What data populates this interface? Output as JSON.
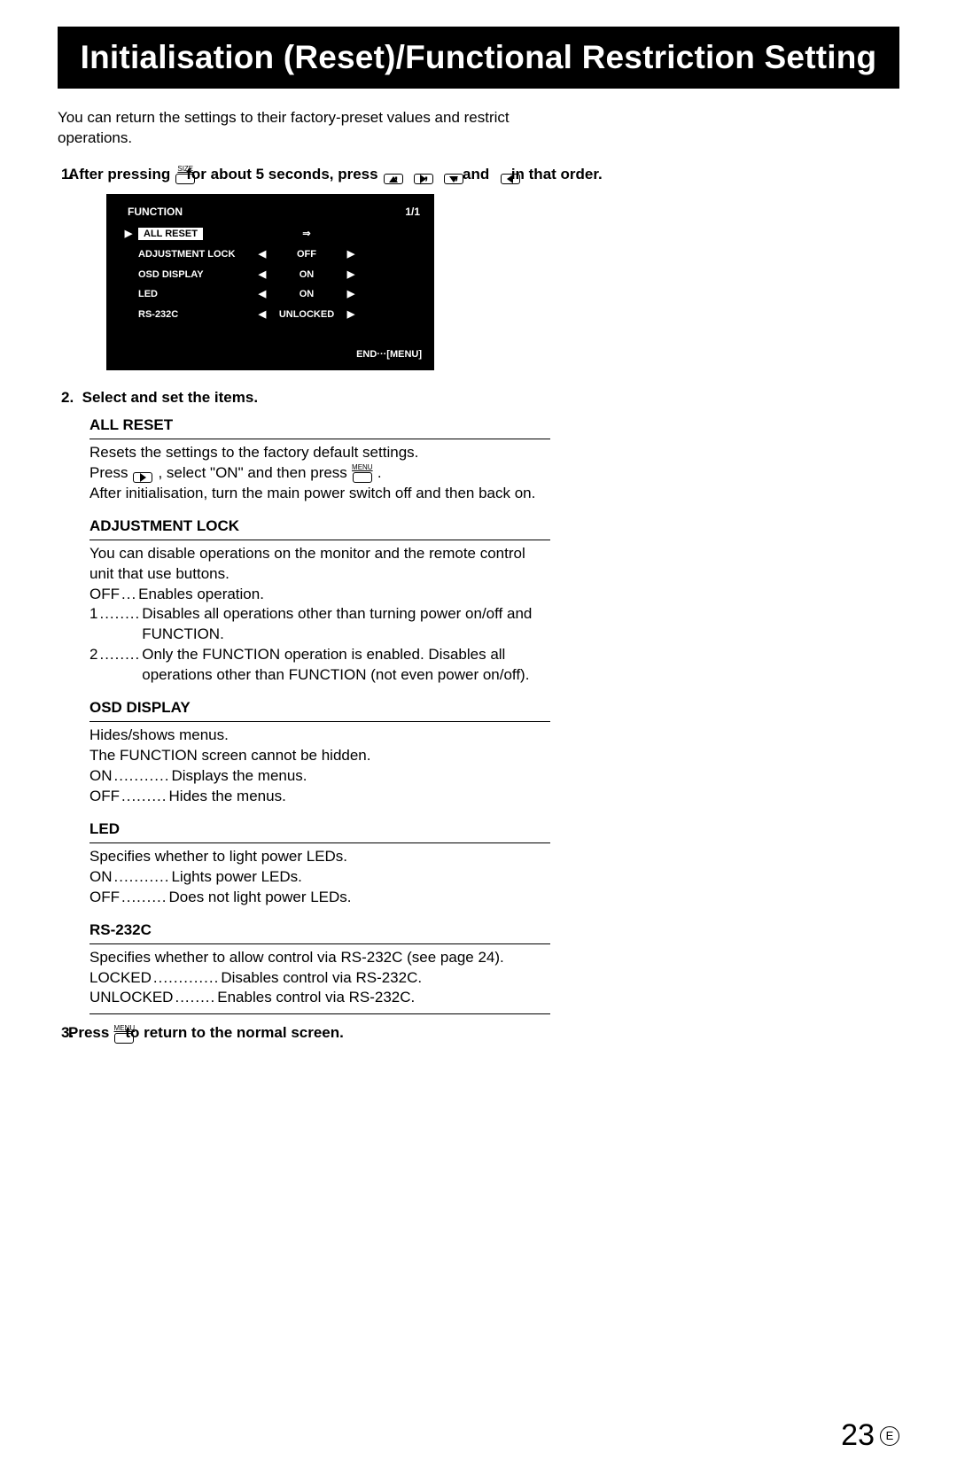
{
  "title": "Initialisation (Reset)/Functional Restriction Setting",
  "intro": "You can return the settings to their factory-preset values and restrict operations.",
  "step1": {
    "num": "1.",
    "a": "After pressing",
    "btn1_label": "SIZE",
    "b": "for about 5 seconds, press",
    "comma": ",",
    "and": ", and",
    "tail": "in that order."
  },
  "osd": {
    "header_left": "FUNCTION",
    "header_right": "1/1",
    "rows": [
      {
        "cursor": "▶",
        "selected": true,
        "name": "ALL RESET",
        "left": "",
        "val": "⇒",
        "right": ""
      },
      {
        "cursor": "",
        "selected": false,
        "name": "ADJUSTMENT LOCK",
        "left": "◀",
        "val": "OFF",
        "right": "▶"
      },
      {
        "cursor": "",
        "selected": false,
        "name": "OSD DISPLAY",
        "left": "◀",
        "val": "ON",
        "right": "▶"
      },
      {
        "cursor": "",
        "selected": false,
        "name": "LED",
        "left": "◀",
        "val": "ON",
        "right": "▶"
      },
      {
        "cursor": "",
        "selected": false,
        "name": "RS-232C",
        "left": "◀",
        "val": "UNLOCKED",
        "right": "▶"
      }
    ],
    "end": "END···[MENU]"
  },
  "step2": {
    "num": "2.",
    "text": "Select and set the items."
  },
  "sections": {
    "all_reset": {
      "title": "ALL RESET",
      "l1": "Resets the settings to the factory default settings.",
      "l2a": "Press",
      "l2b": ", select \"ON\" and then press",
      "l2c": ".",
      "menu_label": "MENU",
      "l3": "After initialisation, turn the main power switch off and then back on."
    },
    "adj_lock": {
      "title": "ADJUSTMENT LOCK",
      "l1": "You can disable operations on the monitor and the remote control unit that use buttons.",
      "off_k": "OFF",
      "off_d": "...",
      "off_v": "Enables operation.",
      "one_k": "1",
      "one_d": "........",
      "one_v": "Disables all operations other than turning power on/off and FUNCTION.",
      "two_k": "2",
      "two_d": "........",
      "two_v": "Only the FUNCTION operation is enabled. Disables all operations other than FUNCTION (not even power on/off)."
    },
    "osd_disp": {
      "title": "OSD DISPLAY",
      "l1": "Hides/shows menus.",
      "l2": "The FUNCTION screen cannot be hidden.",
      "on_k": "ON",
      "on_d": "...........",
      "on_v": "Displays the menus.",
      "off_k": "OFF",
      "off_d": ".........",
      "off_v": "Hides the menus."
    },
    "led": {
      "title": "LED",
      "l1": "Specifies whether to light power LEDs.",
      "on_k": "ON",
      "on_d": "...........",
      "on_v": "Lights power LEDs.",
      "off_k": "OFF",
      "off_d": ".........",
      "off_v": "Does not light power LEDs."
    },
    "rs232c": {
      "title": "RS-232C",
      "l1": "Specifies whether to allow control via RS-232C (see page 24).",
      "lk_k": "LOCKED",
      "lk_d": ".............",
      "lk_v": "Disables control via RS-232C.",
      "ul_k": "UNLOCKED",
      "ul_d": "........",
      "ul_v": "Enables control via RS-232C."
    }
  },
  "step3": {
    "num": "3.",
    "a": "Press",
    "menu_label": "MENU",
    "b": "to return to the normal screen."
  },
  "footer": {
    "page": "23",
    "lang": "E"
  }
}
